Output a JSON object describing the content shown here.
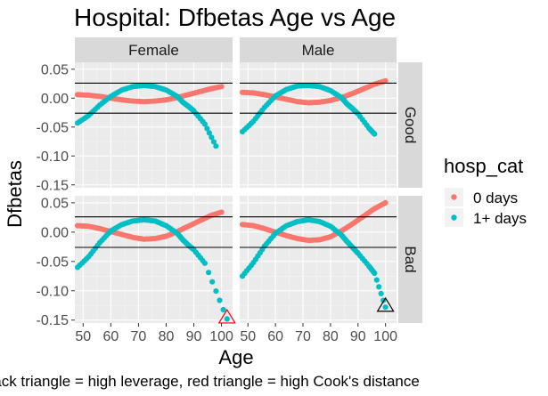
{
  "chart_data": {
    "type": "scatter",
    "title": "Hospital: Dfbetas Age vs Age",
    "xlabel": "Age",
    "ylabel": "Dfbetas",
    "caption": "Black triangle = high leverage, red triangle = high Cook's distance",
    "xlim": [
      47,
      104
    ],
    "ylim": [
      -0.155,
      0.062
    ],
    "x_ticks": [
      50,
      60,
      70,
      80,
      90,
      100
    ],
    "x_tick_labels": [
      "50",
      "60",
      "70",
      "80",
      "90",
      "100"
    ],
    "y_ticks": [
      -0.15,
      -0.1,
      -0.05,
      0.0,
      0.05
    ],
    "y_tick_labels": [
      "-0.15",
      "-0.10",
      "-0.05",
      "0.00",
      "0.05"
    ],
    "reference_lines_y": [
      0.026,
      -0.026
    ],
    "facet_columns": [
      "Female",
      "Male"
    ],
    "facet_rows": [
      "Good",
      "Bad"
    ],
    "legend": {
      "title": "hosp_cat",
      "position": "right",
      "entries": [
        {
          "label": "0 days",
          "color": "#F8766D"
        },
        {
          "label": "1+ days",
          "color": "#00BFC4"
        }
      ]
    },
    "panels": [
      {
        "column": "Female",
        "row": "Good",
        "series": [
          {
            "group": "0 days",
            "x": [
              48,
              52,
              56,
              60,
              64,
              68,
              72,
              76,
              80,
              84,
              88,
              92,
              96,
              100
            ],
            "y": [
              0.006,
              0.005,
              0.003,
              0.0,
              -0.003,
              -0.005,
              -0.006,
              -0.005,
              -0.003,
              0.001,
              0.006,
              0.011,
              0.016,
              0.02
            ]
          },
          {
            "group": "1+ days",
            "x": [
              48,
              52,
              56,
              60,
              64,
              68,
              72,
              76,
              80,
              84,
              86,
              88,
              90,
              94,
              98
            ],
            "y": [
              -0.043,
              -0.03,
              -0.012,
              0.003,
              0.014,
              0.02,
              0.022,
              0.02,
              0.014,
              0.003,
              -0.007,
              -0.014,
              -0.022,
              -0.045,
              -0.083
            ]
          }
        ],
        "markers": []
      },
      {
        "column": "Male",
        "row": "Good",
        "series": [
          {
            "group": "0 days",
            "x": [
              48,
              52,
              56,
              60,
              64,
              68,
              72,
              76,
              80,
              84,
              88,
              92,
              96,
              100
            ],
            "y": [
              0.01,
              0.009,
              0.006,
              0.002,
              -0.002,
              -0.006,
              -0.008,
              -0.007,
              -0.004,
              0.001,
              0.008,
              0.016,
              0.024,
              0.03
            ]
          },
          {
            "group": "1+ days",
            "x": [
              48,
              52,
              56,
              60,
              64,
              68,
              72,
              76,
              80,
              84,
              86,
              88,
              90,
              94,
              96
            ],
            "y": [
              -0.058,
              -0.04,
              -0.016,
              0.004,
              0.015,
              0.021,
              0.022,
              0.02,
              0.013,
              0.001,
              -0.01,
              -0.018,
              -0.027,
              -0.052,
              -0.062
            ]
          }
        ],
        "markers": []
      },
      {
        "column": "Female",
        "row": "Bad",
        "series": [
          {
            "group": "0 days",
            "x": [
              48,
              52,
              56,
              60,
              64,
              68,
              72,
              76,
              80,
              84,
              88,
              92,
              96,
              100
            ],
            "y": [
              0.011,
              0.01,
              0.006,
              0.001,
              -0.004,
              -0.009,
              -0.012,
              -0.011,
              -0.007,
              0.001,
              0.01,
              0.019,
              0.028,
              0.034
            ]
          },
          {
            "group": "1+ days",
            "x": [
              48,
              52,
              56,
              60,
              64,
              68,
              72,
              76,
              80,
              84,
              86,
              88,
              90,
              94,
              102
            ],
            "y": [
              -0.06,
              -0.042,
              -0.018,
              0.002,
              0.013,
              0.019,
              0.021,
              0.019,
              0.011,
              -0.002,
              -0.013,
              -0.022,
              -0.03,
              -0.053,
              -0.148
            ]
          }
        ],
        "markers": [
          {
            "type": "high Cook's distance",
            "x": 102,
            "y": -0.146
          }
        ]
      },
      {
        "column": "Male",
        "row": "Bad",
        "series": [
          {
            "group": "0 days",
            "x": [
              48,
              52,
              56,
              60,
              64,
              68,
              72,
              76,
              80,
              84,
              88,
              92,
              96,
              100
            ],
            "y": [
              0.013,
              0.011,
              0.006,
              0.0,
              -0.006,
              -0.011,
              -0.014,
              -0.013,
              -0.008,
              0.002,
              0.014,
              0.027,
              0.04,
              0.05
            ]
          },
          {
            "group": "1+ days",
            "x": [
              48,
              52,
              56,
              60,
              64,
              68,
              72,
              76,
              80,
              84,
              86,
              88,
              90,
              94,
              96,
              100
            ],
            "y": [
              -0.075,
              -0.052,
              -0.024,
              -0.002,
              0.011,
              0.018,
              0.021,
              0.018,
              0.01,
              -0.005,
              -0.016,
              -0.026,
              -0.036,
              -0.058,
              -0.07,
              -0.128
            ]
          }
        ],
        "markers": [
          {
            "type": "high leverage",
            "x": 100,
            "y": -0.126
          }
        ]
      }
    ]
  }
}
